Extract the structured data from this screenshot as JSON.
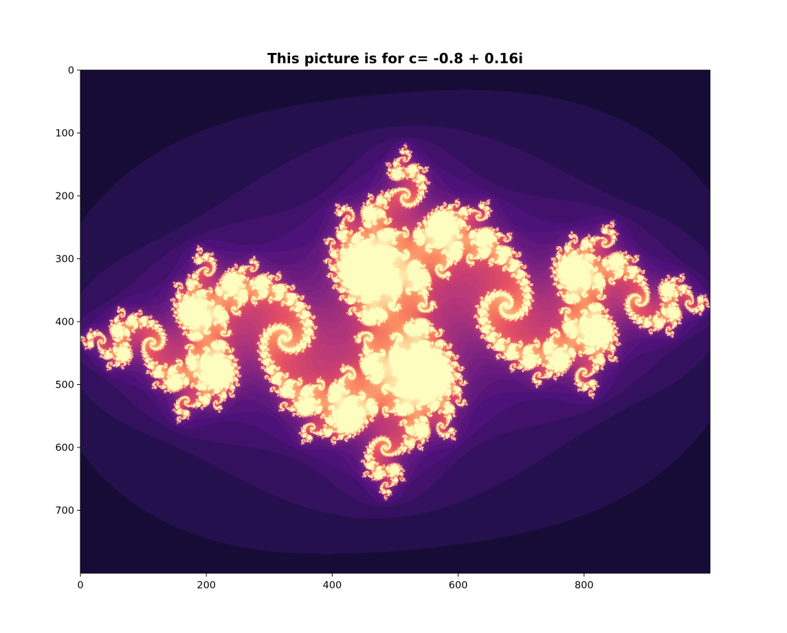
{
  "chart_data": {
    "type": "heatmap",
    "title": "This picture is for c= -0.8 + 0.16i",
    "xlabel": "",
    "ylabel": "",
    "xlim": [
      0,
      1000
    ],
    "ylim": [
      800,
      0
    ],
    "x_ticks": [
      0,
      200,
      400,
      600,
      800
    ],
    "y_ticks": [
      0,
      100,
      200,
      300,
      400,
      500,
      600,
      700
    ],
    "colormap": "magma",
    "fractal": {
      "kind": "julia",
      "c_real": -0.8,
      "c_imag": 0.16,
      "image_width": 1000,
      "image_height": 800,
      "max_iterations": 64
    },
    "grid": false,
    "legend": "none"
  },
  "colors": {
    "background": "#ffffff",
    "plot_background": "#000004",
    "axis": "#000000"
  }
}
